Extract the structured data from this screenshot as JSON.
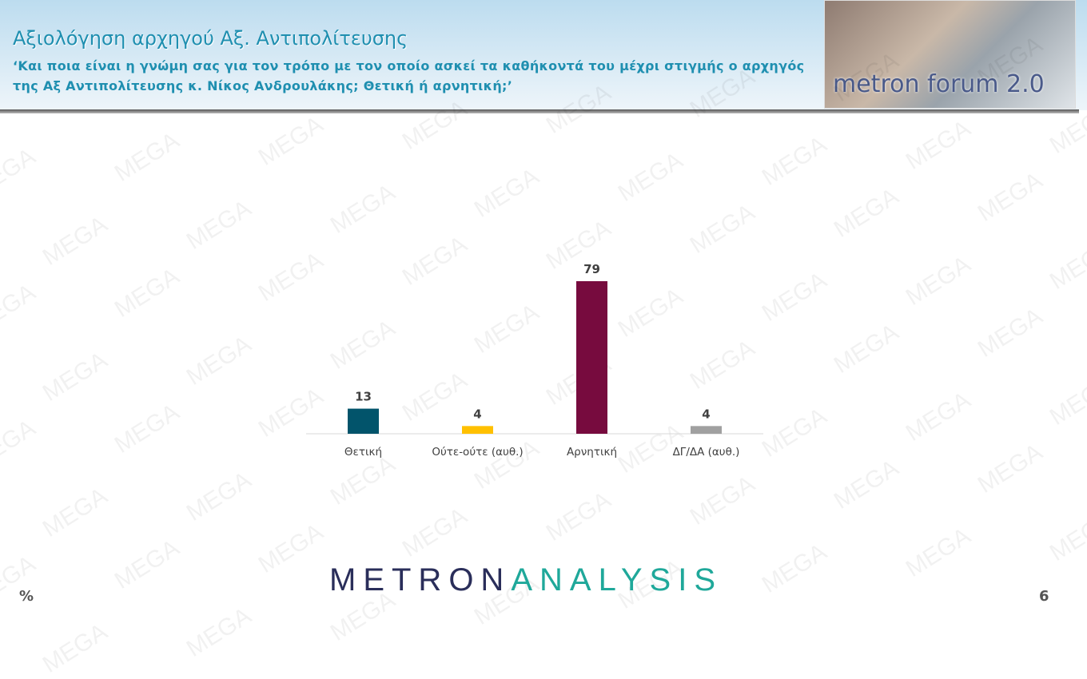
{
  "header": {
    "title": "Αξιολόγηση αρχηγού Αξ. Αντιπολίτευσης",
    "subtitle": "‘Και ποια είναι η γνώμη σας για τον τρόπο με τον οποίο ασκεί τα καθήκοντά του μέχρι στιγμής ο αρχηγός της Αξ Αντιπολίτευσης κ. Νίκος Ανδρουλάκης; Θετική ή αρνητική;’",
    "logo_text": "metron forum 2.0"
  },
  "watermark": "MEGA",
  "chart_data": {
    "type": "bar",
    "categories": [
      "Θετική",
      "Ούτε-ούτε (αυθ.)",
      "Αρνητική",
      "ΔΓ/ΔΑ (αυθ.)"
    ],
    "values": [
      13,
      4,
      79,
      4
    ],
    "colors": [
      "#02546b",
      "#ffc000",
      "#770b3e",
      "#a0a0a0"
    ],
    "unit": "%",
    "ylim": [
      0,
      100
    ],
    "grid": false
  },
  "footer": {
    "brand_left": "METRON",
    "brand_right": "ANALYSIS",
    "unit": "%",
    "page": "6"
  }
}
